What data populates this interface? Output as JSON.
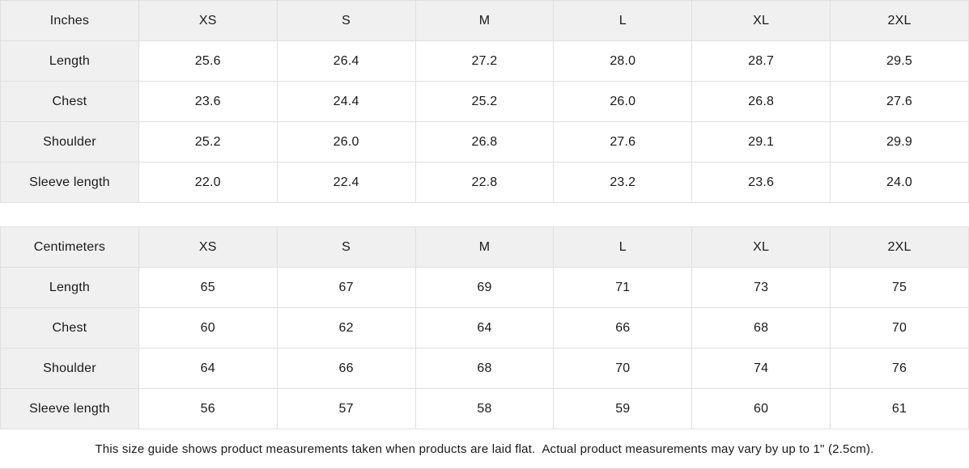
{
  "tables": [
    {
      "id": "inches",
      "unit_label": "Inches",
      "header": [
        "Inches",
        "XS",
        "S",
        "M",
        "L",
        "XL",
        "2XL"
      ],
      "rows": [
        [
          "Length",
          "25.6",
          "26.4",
          "27.2",
          "28.0",
          "28.7",
          "29.5"
        ],
        [
          "Chest",
          "23.6",
          "24.4",
          "25.2",
          "26.0",
          "26.8",
          "27.6"
        ],
        [
          "Shoulder",
          "25.2",
          "26.0",
          "26.8",
          "27.6",
          "29.1",
          "29.9"
        ],
        [
          "Sleeve length",
          "22.0",
          "22.4",
          "22.8",
          "23.2",
          "23.6",
          "24.0"
        ]
      ]
    },
    {
      "id": "centimeters",
      "unit_label": "Centimeters",
      "header": [
        "Centimeters",
        "XS",
        "S",
        "M",
        "L",
        "XL",
        "2XL"
      ],
      "rows": [
        [
          "Length",
          "65",
          "67",
          "69",
          "71",
          "73",
          "75"
        ],
        [
          "Chest",
          "60",
          "62",
          "64",
          "66",
          "68",
          "70"
        ],
        [
          "Shoulder",
          "64",
          "66",
          "68",
          "70",
          "74",
          "76"
        ],
        [
          "Sleeve length",
          "56",
          "57",
          "58",
          "59",
          "60",
          "61"
        ]
      ]
    }
  ],
  "footer": {
    "note": "This size guide shows product measurements taken when products are laid flat.  Actual product measurements may vary by up to 1\" (2.5cm)."
  },
  "colors": {
    "header_bg": "#f0f0f1",
    "border": "#e0e0e0",
    "text": "#1a1a1a",
    "background": "#ffffff"
  }
}
